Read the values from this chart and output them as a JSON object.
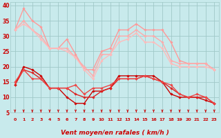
{
  "x": [
    0,
    1,
    2,
    3,
    4,
    5,
    6,
    7,
    8,
    9,
    10,
    11,
    12,
    13,
    14,
    15,
    16,
    17,
    18,
    19,
    20,
    21,
    22,
    23
  ],
  "series": [
    {
      "y": [
        32,
        39,
        35,
        33,
        26,
        26,
        29,
        24,
        19,
        19,
        25,
        26,
        32,
        32,
        34,
        32,
        32,
        32,
        28,
        22,
        21,
        21,
        21,
        19
      ],
      "color": "#ff9999",
      "lw": 1.0,
      "marker": "D",
      "ms": 1.8
    },
    {
      "y": [
        32,
        35,
        32,
        30,
        26,
        26,
        26,
        23,
        20,
        17,
        24,
        24,
        30,
        30,
        32,
        30,
        30,
        28,
        22,
        21,
        21,
        21,
        21,
        19
      ],
      "color": "#ffaaaa",
      "lw": 1.0,
      "marker": "D",
      "ms": 1.8
    },
    {
      "y": [
        32,
        34,
        32,
        29,
        26,
        26,
        25,
        23,
        19,
        16,
        22,
        24,
        28,
        29,
        31,
        28,
        28,
        26,
        21,
        20,
        20,
        20,
        20,
        19
      ],
      "color": "#ffbbbb",
      "lw": 1.0,
      "marker": "D",
      "ms": 1.8
    },
    {
      "y": [
        14,
        20,
        19,
        17,
        13,
        13,
        10,
        8,
        8,
        12,
        12,
        13,
        17,
        17,
        17,
        17,
        17,
        15,
        11,
        10,
        10,
        10,
        9,
        8
      ],
      "color": "#cc0000",
      "lw": 1.0,
      "marker": "D",
      "ms": 1.8
    },
    {
      "y": [
        14,
        19,
        18,
        16,
        13,
        13,
        13,
        11,
        10,
        10,
        12,
        13,
        16,
        16,
        16,
        17,
        16,
        15,
        13,
        11,
        10,
        10,
        10,
        8
      ],
      "color": "#dd2222",
      "lw": 1.0,
      "marker": "D",
      "ms": 1.8
    },
    {
      "y": [
        15,
        19,
        16,
        16,
        13,
        13,
        13,
        14,
        11,
        13,
        13,
        14,
        16,
        16,
        16,
        17,
        16,
        15,
        14,
        11,
        10,
        11,
        10,
        8
      ],
      "color": "#ee4444",
      "lw": 1.0,
      "marker": "D",
      "ms": 1.8
    }
  ],
  "xlabel": "Vent moyen/en rafales ( km/h )",
  "ylim": [
    5,
    41
  ],
  "yticks": [
    5,
    10,
    15,
    20,
    25,
    30,
    35,
    40
  ],
  "xlim": [
    -0.5,
    23.5
  ],
  "xticks": [
    0,
    1,
    2,
    3,
    4,
    5,
    6,
    7,
    8,
    9,
    10,
    11,
    12,
    13,
    14,
    15,
    16,
    17,
    18,
    19,
    20,
    21,
    22,
    23
  ],
  "bg_color": "#c8eaec",
  "grid_color": "#a0c8c8",
  "tick_color": "#cc0000",
  "label_color": "#cc0000"
}
